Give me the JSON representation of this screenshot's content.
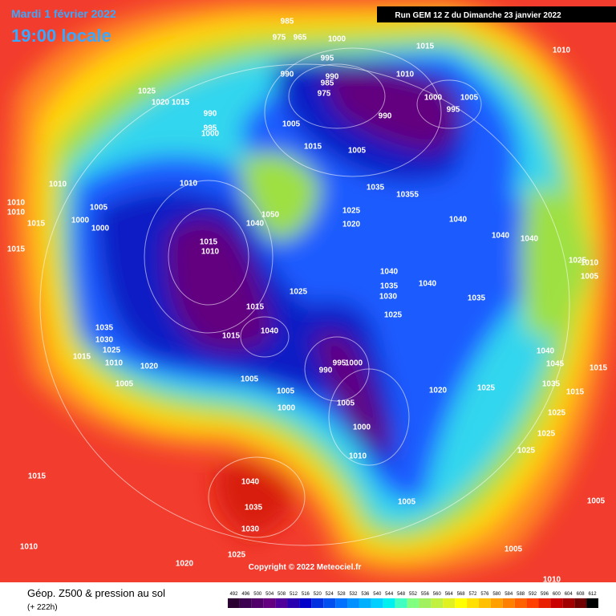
{
  "header": {
    "date": "Mardi 1 février 2022",
    "time": "19:00 locale",
    "run": "Run GEM 12 Z du Dimanche 23 janvier 2022"
  },
  "copyright": "Copyright © 2022 Meteociel.fr",
  "footer": {
    "title": "Géop. Z500 & pression au sol",
    "lead": "(+ 222h)"
  },
  "legend": {
    "ticks": [
      492,
      496,
      500,
      504,
      508,
      512,
      516,
      520,
      524,
      528,
      532,
      536,
      540,
      544,
      548,
      552,
      556,
      560,
      564,
      568,
      572,
      576,
      580,
      584,
      588,
      592,
      596,
      600,
      604,
      608,
      612
    ],
    "colors": [
      "#2a0030",
      "#3c0050",
      "#500068",
      "#640080",
      "#50009a",
      "#2800b0",
      "#0000c8",
      "#0030e0",
      "#0050f0",
      "#0070ff",
      "#0090ff",
      "#00b0ff",
      "#00d0ff",
      "#00f0f0",
      "#40ffc0",
      "#80ff80",
      "#a0f060",
      "#c0f040",
      "#e0f020",
      "#ffff00",
      "#ffe000",
      "#ffc000",
      "#ffa000",
      "#ff8000",
      "#ff6000",
      "#ff4000",
      "#e82000",
      "#c80000",
      "#a00000",
      "#700000",
      "#000000"
    ]
  },
  "isobar_labels": [
    "985",
    "975",
    "965",
    "1000",
    "1015",
    "1010",
    "995",
    "990",
    "990",
    "985",
    "975",
    "1010",
    "1025",
    "1020",
    "1015",
    "990",
    "995",
    "1000",
    "1000",
    "995",
    "1005",
    "990",
    "1005",
    "1015",
    "1005",
    "1010",
    "1010",
    "1010",
    "1010",
    "1015",
    "1005",
    "1000",
    "1000",
    "1015",
    "1035",
    "10355",
    "1025",
    "1020",
    "1050",
    "1040",
    "1040",
    "1040",
    "1040",
    "1015",
    "1010",
    "1040",
    "1035",
    "1030",
    "1040",
    "1025",
    "1015",
    "1025",
    "1035",
    "1035",
    "1030",
    "1025",
    "1015",
    "1040",
    "990",
    "995",
    "1000",
    "1015",
    "1010",
    "1020",
    "1005",
    "1005",
    "1005",
    "1000",
    "1005",
    "1020",
    "1025",
    "1040",
    "1045",
    "1035",
    "1015",
    "1015",
    "1025",
    "1025",
    "1025",
    "1000",
    "1010",
    "1005",
    "1015",
    "1040",
    "1035",
    "1030",
    "1010",
    "1025",
    "1020",
    "1005",
    "1010",
    "1005",
    "1005",
    "1010",
    "1025"
  ]
}
